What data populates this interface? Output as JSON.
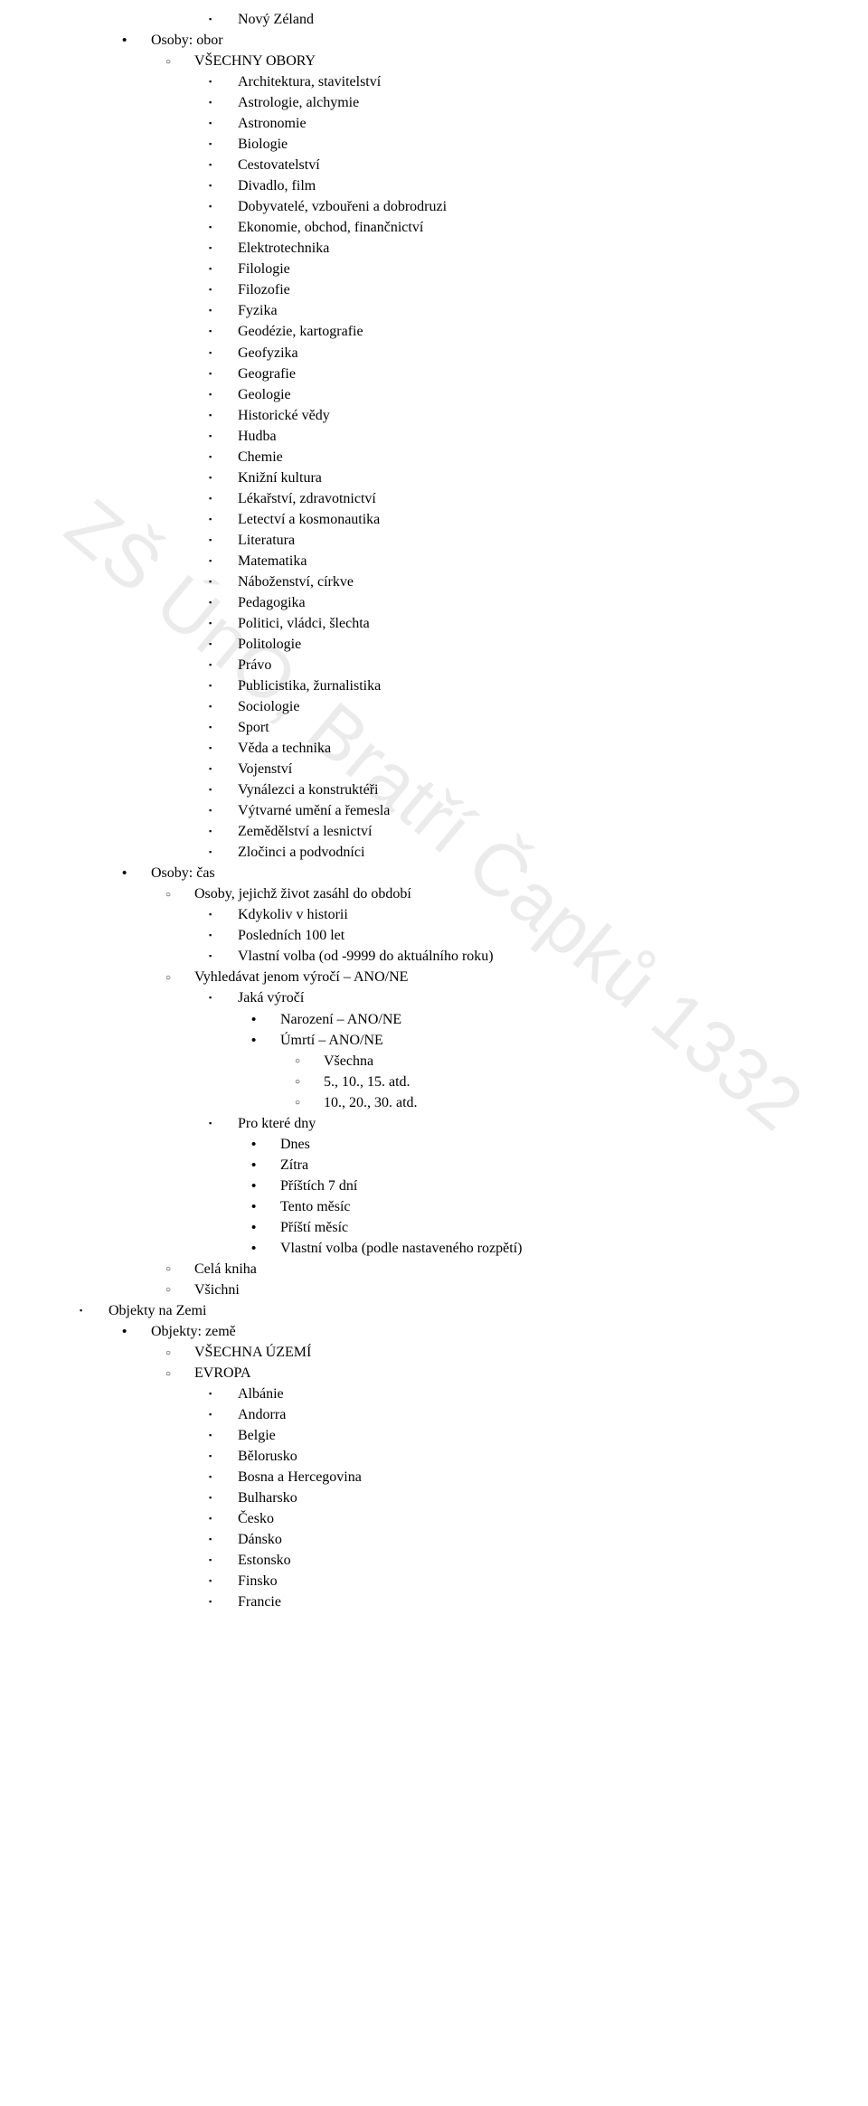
{
  "watermark": "ZŠ ÚnO, Bratří Čapků 1332",
  "pre_items": [
    "Nový Zéland"
  ],
  "sections": [
    {
      "label": "Osoby: obor",
      "sub": [
        {
          "label": "VŠECHNY OBORY",
          "items": [
            "Architektura, stavitelství",
            "Astrologie, alchymie",
            "Astronomie",
            "Biologie",
            "Cestovatelství",
            "Divadlo, film",
            "Dobyvatelé, vzbouřeni a dobrodruzi",
            "Ekonomie, obchod, finančnictví",
            "Elektrotechnika",
            "Filologie",
            "Filozofie",
            "Fyzika",
            "Geodézie, kartografie",
            "Geofyzika",
            "Geografie",
            "Geologie",
            "Historické vědy",
            "Hudba",
            "Chemie",
            "Knižní kultura",
            "Lékařství, zdravotnictví",
            "Letectví a kosmonautika",
            "Literatura",
            "Matematika",
            "Náboženství, církve",
            "Pedagogika",
            "Politici, vládci, šlechta",
            "Politologie",
            "Právo",
            "Publicistika, žurnalistika",
            "Sociologie",
            "Sport",
            "Věda a technika",
            "Vojenství",
            "Vynálezci a konstruktéři",
            "Výtvarné umění a řemesla",
            "Zemědělství a lesnictví",
            "Zločinci a podvodníci"
          ]
        }
      ]
    },
    {
      "label": "Osoby: čas",
      "sub": [
        {
          "label": "Osoby, jejichž život zasáhl do období",
          "items": [
            "Kdykoliv v historii",
            "Posledních 100 let",
            "Vlastní volba (od -9999 do aktuálního roku)"
          ]
        },
        {
          "label": "Vyhledávat jenom výročí – ANO/NE",
          "blocks": [
            {
              "label": "Jaká výročí",
              "items_l2": [
                {
                  "label": "Narození – ANO/NE"
                },
                {
                  "label": "Úmrtí – ANO/NE",
                  "items_l3": [
                    "Všechna",
                    "5., 10., 15. atd.",
                    "10., 20., 30. atd."
                  ]
                }
              ]
            },
            {
              "label": "Pro které dny",
              "items_l2": [
                {
                  "label": "Dnes"
                },
                {
                  "label": "Zítra"
                },
                {
                  "label": "Příštích 7 dní"
                },
                {
                  "label": "Tento měsíc"
                },
                {
                  "label": "Příští měsíc"
                },
                {
                  "label": "Vlastní volba (podle nastaveného rozpětí)"
                }
              ]
            }
          ]
        },
        {
          "label": "Celá kniha"
        },
        {
          "label": "Všichni"
        }
      ]
    }
  ],
  "level0": {
    "label": "Objekty na Zemi",
    "sub": [
      {
        "label": "Objekty: země",
        "sub2": [
          {
            "label": "VŠECHNA ÚZEMÍ"
          },
          {
            "label": "EVROPA",
            "items": [
              "Albánie",
              "Andorra",
              "Belgie",
              "Bělorusko",
              "Bosna a Hercegovina",
              "Bulharsko",
              "Česko",
              "Dánsko",
              "Estonsko",
              "Finsko",
              "Francie"
            ]
          }
        ]
      }
    ]
  }
}
